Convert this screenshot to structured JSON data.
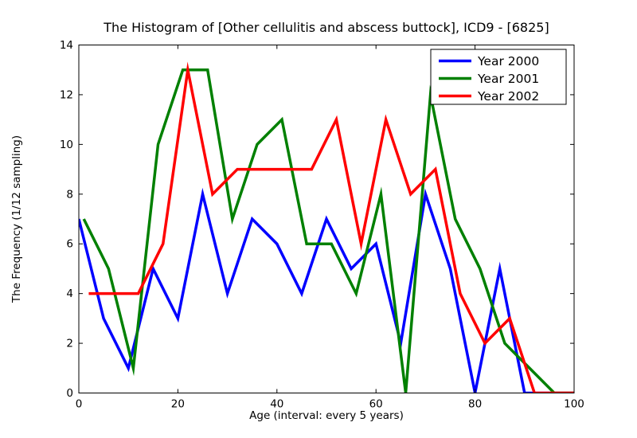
{
  "chart_data": {
    "type": "line",
    "title": "The Histogram of [Other cellulitis and abscess buttock], ICD9 - [6825]",
    "xlabel": "Age (interval: every 5 years)",
    "ylabel": "The Frequency (1/12 sampling)",
    "xlim": [
      0,
      100
    ],
    "ylim": [
      0,
      14
    ],
    "xticks": [
      0,
      20,
      40,
      60,
      80,
      100
    ],
    "yticks": [
      0,
      2,
      4,
      6,
      8,
      10,
      12,
      14
    ],
    "grid": false,
    "legend_position": "top-right",
    "background_color": "#ffffff",
    "axis_color": "#000000",
    "series": [
      {
        "name": "Year 2000",
        "color": "#0000ff",
        "x": [
          0,
          5,
          10,
          15,
          20,
          25,
          30,
          35,
          40,
          45,
          50,
          55,
          60,
          65,
          70,
          75,
          80,
          85,
          90,
          95,
          100
        ],
        "y": [
          7,
          3,
          1,
          5,
          3,
          8,
          4,
          7,
          6,
          4,
          7,
          5,
          6,
          2,
          8,
          5,
          0,
          5,
          0,
          0,
          0
        ]
      },
      {
        "name": "Year 2001",
        "color": "#008000",
        "x": [
          1,
          6,
          11,
          16,
          21,
          26,
          31,
          36,
          41,
          46,
          51,
          56,
          61,
          66,
          71,
          76,
          81,
          86,
          91,
          96,
          101
        ],
        "y": [
          7,
          5,
          1,
          10,
          13,
          13,
          7,
          10,
          11,
          6,
          6,
          4,
          8,
          0,
          12,
          7,
          5,
          2,
          1,
          0,
          0
        ]
      },
      {
        "name": "Year 2002",
        "color": "#ff0000",
        "x": [
          2,
          7,
          12,
          17,
          22,
          27,
          32,
          37,
          42,
          47,
          52,
          57,
          62,
          67,
          72,
          77,
          82,
          87,
          92,
          97,
          102
        ],
        "y": [
          4,
          4,
          4,
          6,
          13,
          8,
          9,
          9,
          9,
          9,
          11,
          6,
          11,
          8,
          9,
          4,
          2,
          3,
          0,
          0,
          0
        ]
      }
    ]
  }
}
